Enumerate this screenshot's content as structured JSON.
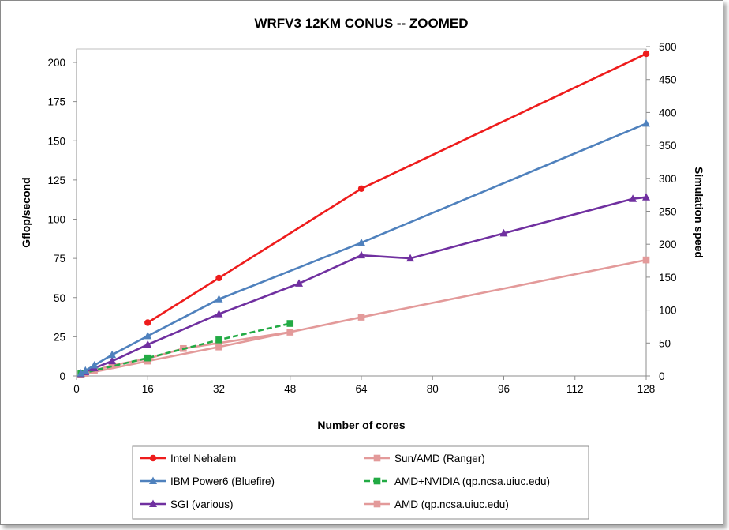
{
  "chart_data": {
    "type": "line",
    "title": "WRFV3 12KM CONUS -- ZOOMED",
    "xlabel": "Number of cores",
    "ylabel": "Gflop/second",
    "y2label": "Simulation speed",
    "xlim": [
      0,
      128
    ],
    "ylim": [
      0,
      210
    ],
    "y2lim": [
      0,
      500
    ],
    "xticks": [
      0,
      16,
      32,
      48,
      64,
      80,
      96,
      112,
      128
    ],
    "yticks": [
      0,
      25,
      50,
      75,
      100,
      125,
      150,
      175,
      200
    ],
    "y2ticks": [
      0,
      50,
      100,
      150,
      200,
      250,
      300,
      350,
      400,
      450,
      500
    ],
    "grid": false,
    "legend_placement": "bottom",
    "series": [
      {
        "name": "Intel Nehalem",
        "color": "#ee1c1c",
        "marker": "circle",
        "dash": "solid",
        "x": [
          16,
          32,
          64,
          128
        ],
        "y": [
          34,
          62.5,
          119.5,
          205.5
        ]
      },
      {
        "name": "Sun/AMD (Ranger)",
        "color": "#e39a9a",
        "marker": "square",
        "dash": "solid",
        "x": [
          1,
          2,
          4,
          8,
          16,
          24,
          32,
          48,
          64,
          128
        ],
        "y": [
          0.9,
          1.7,
          3.4,
          6.8,
          11,
          17.5,
          21,
          28,
          37.5,
          74
        ]
      },
      {
        "name": "IBM Power6 (Bluefire)",
        "color": "#4f81bd",
        "marker": "triangle",
        "dash": "solid",
        "x": [
          1,
          2,
          4,
          8,
          16,
          32,
          64,
          128
        ],
        "y": [
          1.7,
          3.4,
          6.8,
          13.5,
          25.5,
          49,
          85,
          161
        ]
      },
      {
        "name": "AMD+NVIDIA (qp.ncsa.uiuc.edu)",
        "color": "#22aa44",
        "marker": "square",
        "dash": "dashed",
        "x": [
          1,
          16,
          32,
          48
        ],
        "y": [
          1.5,
          11.5,
          23,
          33.5
        ]
      },
      {
        "name": "SGI (various)",
        "color": "#7030a0",
        "marker": "triangle",
        "dash": "solid",
        "x": [
          1,
          2,
          4,
          8,
          16,
          32,
          50,
          64,
          75,
          96,
          125,
          128
        ],
        "y": [
          1.3,
          2.6,
          5,
          9.5,
          20,
          39.5,
          59,
          77,
          75,
          91,
          113,
          114
        ]
      },
      {
        "name": "AMD (qp.ncsa.uiuc.edu)",
        "color": "#e39a9a",
        "marker": "square",
        "dash": "solid",
        "x": [
          1,
          16,
          32,
          48
        ],
        "y": [
          0.9,
          9.5,
          18.5,
          28
        ]
      }
    ]
  }
}
